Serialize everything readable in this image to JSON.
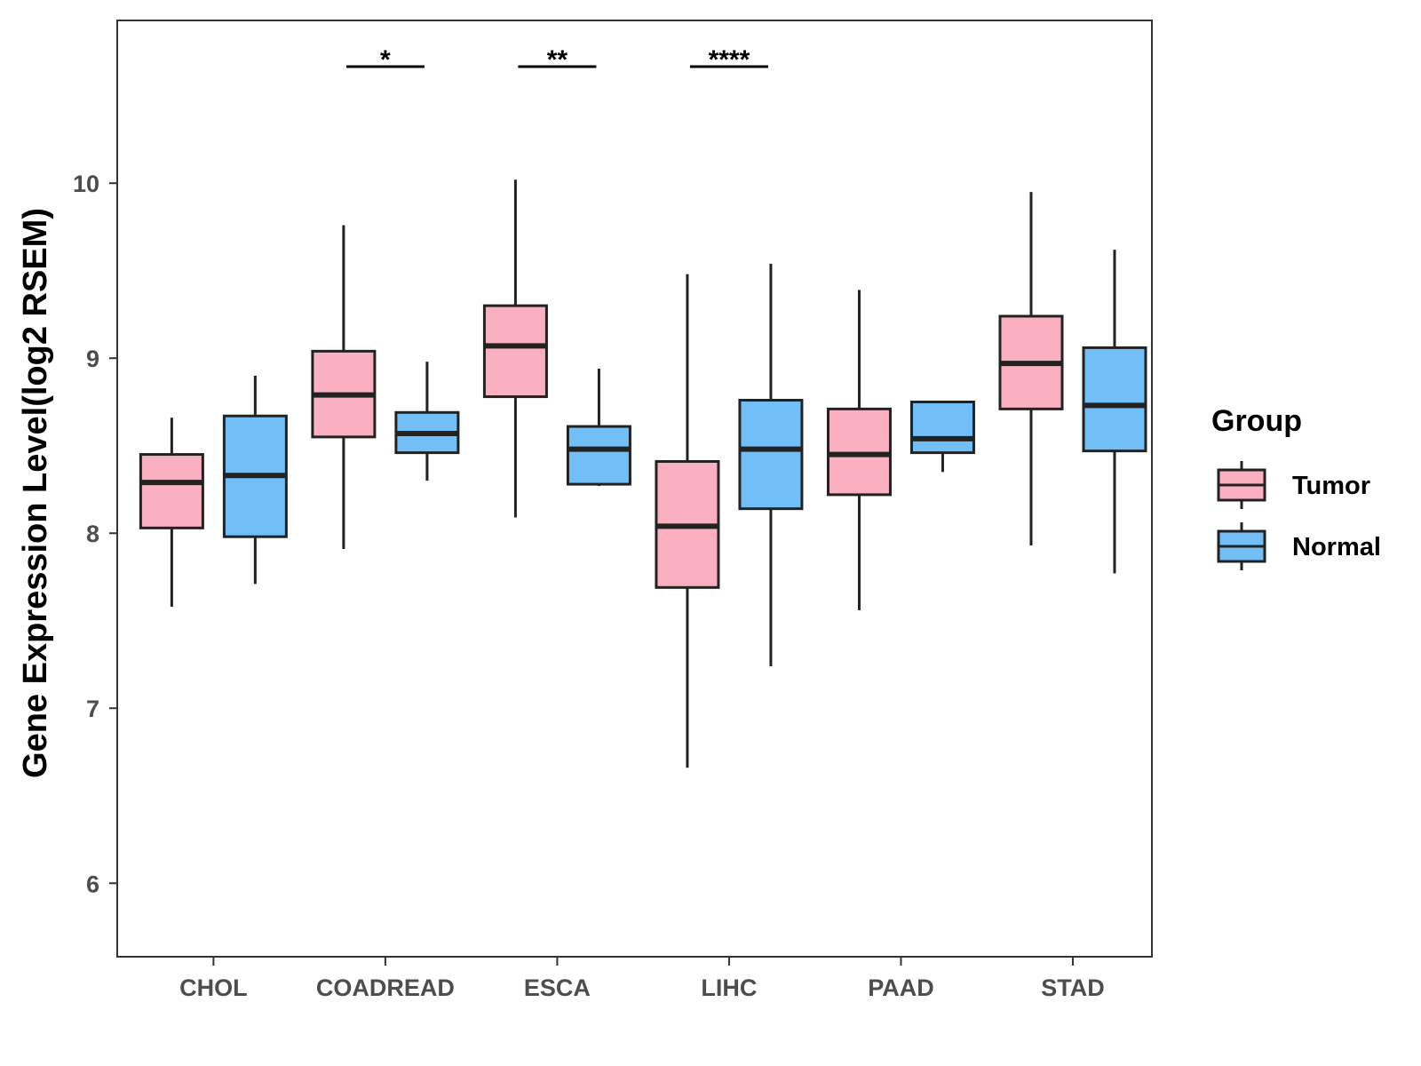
{
  "chart_data": {
    "type": "boxplot",
    "title": "",
    "xlabel": "",
    "ylabel": "Gene Expression Level(log2 RSEM)",
    "ylim": [
      5.58,
      10.93
    ],
    "yticks": [
      6,
      7,
      8,
      9,
      10
    ],
    "grid": false,
    "categories": [
      "CHOL",
      "COADREAD",
      "ESCA",
      "LIHC",
      "PAAD",
      "STAD"
    ],
    "series": [
      {
        "name": "Tumor",
        "color": "#FAB0C1",
        "boxes": [
          {
            "category": "CHOL",
            "whisker_low": 7.58,
            "q1": 8.03,
            "median": 8.29,
            "q3": 8.45,
            "whisker_high": 8.66
          },
          {
            "category": "COADREAD",
            "whisker_low": 7.91,
            "q1": 8.55,
            "median": 8.79,
            "q3": 9.04,
            "whisker_high": 9.76
          },
          {
            "category": "ESCA",
            "whisker_low": 8.09,
            "q1": 8.78,
            "median": 9.07,
            "q3": 9.3,
            "whisker_high": 10.02
          },
          {
            "category": "LIHC",
            "whisker_low": 6.66,
            "q1": 7.69,
            "median": 8.04,
            "q3": 8.41,
            "whisker_high": 9.48
          },
          {
            "category": "PAAD",
            "whisker_low": 7.56,
            "q1": 8.22,
            "median": 8.45,
            "q3": 8.71,
            "whisker_high": 9.39
          },
          {
            "category": "STAD",
            "whisker_low": 7.93,
            "q1": 8.71,
            "median": 8.97,
            "q3": 9.24,
            "whisker_high": 9.95
          }
        ]
      },
      {
        "name": "Normal",
        "color": "#72BEF6",
        "boxes": [
          {
            "category": "CHOL",
            "whisker_low": 7.71,
            "q1": 7.98,
            "median": 8.33,
            "q3": 8.67,
            "whisker_high": 8.9
          },
          {
            "category": "COADREAD",
            "whisker_low": 8.3,
            "q1": 8.46,
            "median": 8.57,
            "q3": 8.69,
            "whisker_high": 8.98
          },
          {
            "category": "ESCA",
            "whisker_low": 8.27,
            "q1": 8.28,
            "median": 8.48,
            "q3": 8.61,
            "whisker_high": 8.94
          },
          {
            "category": "LIHC",
            "whisker_low": 7.24,
            "q1": 8.14,
            "median": 8.48,
            "q3": 8.76,
            "whisker_high": 9.54
          },
          {
            "category": "PAAD",
            "whisker_low": 8.35,
            "q1": 8.46,
            "median": 8.54,
            "q3": 8.75,
            "whisker_high": 8.75
          },
          {
            "category": "STAD",
            "whisker_low": 7.77,
            "q1": 8.47,
            "median": 8.73,
            "q3": 9.06,
            "whisker_high": 9.62
          }
        ]
      }
    ],
    "significance": [
      {
        "category": "CHOL",
        "label": ""
      },
      {
        "category": "COADREAD",
        "label": "*"
      },
      {
        "category": "ESCA",
        "label": "**"
      },
      {
        "category": "LIHC",
        "label": "****"
      },
      {
        "category": "PAAD",
        "label": ""
      },
      {
        "category": "STAD",
        "label": ""
      }
    ],
    "legend": {
      "title": "Group",
      "position": "right"
    }
  }
}
